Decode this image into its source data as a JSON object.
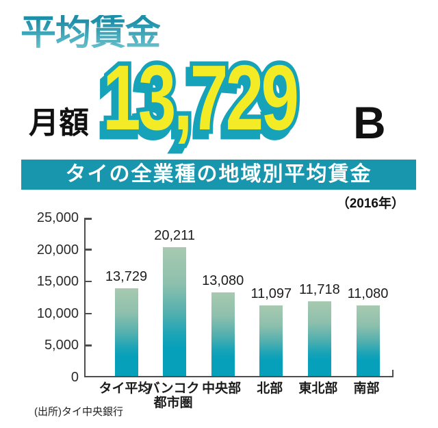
{
  "header": {
    "title": "平均賃金",
    "amount_prefix": "月額",
    "amount_value": "13,729",
    "amount_currency": "B"
  },
  "banner": {
    "text": "タイの全業種の地域別平均賃金"
  },
  "year_note": "（2016年）",
  "source": "(出所)タイ中央銀行",
  "colors": {
    "teal": "#1796ad",
    "title_grad_top": "#1e8fa9",
    "title_grad_bottom": "#63bec9",
    "number_fill": "#f3eb25",
    "number_outline": "#16a3b9",
    "bar_top": "#a7c9b0",
    "bar_bottom": "#07a0ba",
    "axis": "#4d4d4d"
  },
  "chart_data": {
    "type": "bar",
    "title": "タイの全業種の地域別平均賃金",
    "subtitle": "（2016年）",
    "categories": [
      "タイ平均",
      "バンコク\n都市圏",
      "中央部",
      "北部",
      "東北部",
      "南部"
    ],
    "values": [
      13729,
      20211,
      13080,
      11097,
      11718,
      11080
    ],
    "value_labels": [
      "13,729",
      "20,211",
      "13,080",
      "11,097",
      "11,718",
      "11,080"
    ],
    "y_ticks": [
      "25,000",
      "20,000",
      "15,000",
      "10,000",
      "5,000",
      "0"
    ],
    "ylim": [
      0,
      25000
    ],
    "grid": false,
    "legend": false,
    "source": "(出所)タイ中央銀行"
  }
}
